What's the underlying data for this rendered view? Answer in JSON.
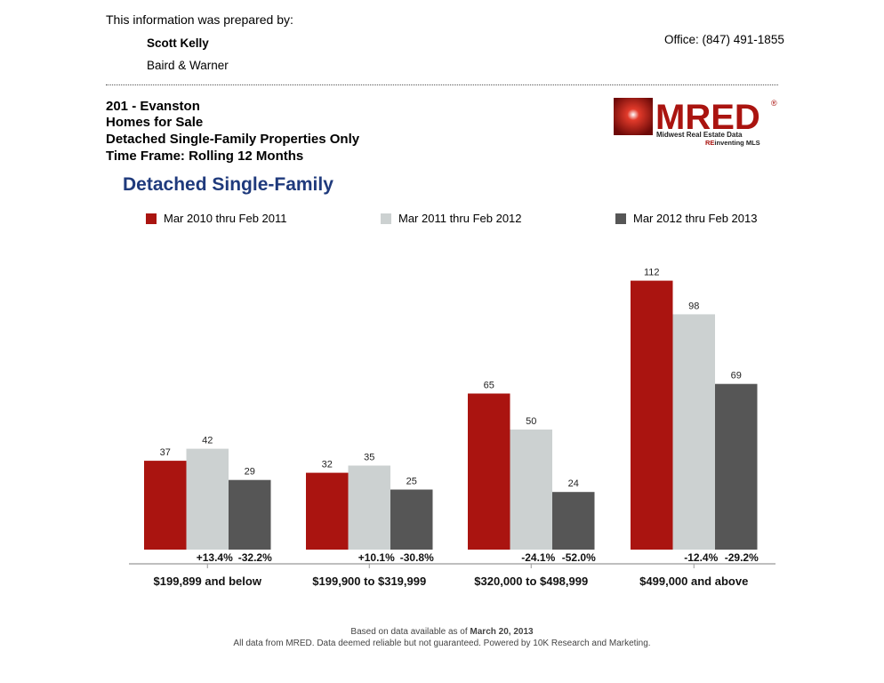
{
  "header": {
    "prepared_by": "This information was prepared by:",
    "agent_name": "Scott Kelly",
    "agent_company": "Baird & Warner",
    "office_phone": "Office: (847) 491-1855"
  },
  "report": {
    "area": "201 - Evanston",
    "type": "Homes for Sale",
    "properties": "Detached Single-Family Properties Only",
    "time_frame": "Time Frame: Rolling 12 Months"
  },
  "logo": {
    "text": "MRED",
    "tagline": "Midwest Real Estate Data",
    "sub_tagline_prefix": "RE",
    "sub_tagline_rest": "inventing MLS",
    "registered": "®"
  },
  "colors": {
    "series1": "#aa1410",
    "series2": "#ccd1d1",
    "series3": "#565656",
    "title_blue": "#1f3a7c",
    "axis": "#999999"
  },
  "chart_data": {
    "type": "bar",
    "title": "Detached Single-Family",
    "xlabel": "",
    "ylabel": "",
    "ylim": [
      0,
      120
    ],
    "grid": false,
    "legend": "top",
    "categories": [
      "$199,899 and below",
      "$199,900 to $319,999",
      "$320,000 to $498,999",
      "$499,000 and above"
    ],
    "series": [
      {
        "name": "Mar 2010 thru Feb 2011",
        "values": [
          37,
          32,
          65,
          112
        ]
      },
      {
        "name": "Mar 2011 thru Feb 2012",
        "values": [
          42,
          35,
          50,
          98
        ]
      },
      {
        "name": "Mar 2012 thru Feb 2013",
        "values": [
          29,
          25,
          24,
          69
        ]
      }
    ],
    "percent_changes": [
      [
        "+13.4%",
        "-32.2%"
      ],
      [
        "+10.1%",
        "-30.8%"
      ],
      [
        "-24.1%",
        "-52.0%"
      ],
      [
        "-12.4%",
        "-29.2%"
      ]
    ]
  },
  "footer": {
    "line1_prefix": "Based on data available as of ",
    "line1_date": "March 20, 2013",
    "line2": "All data from MRED. Data deemed reliable but not guaranteed. Powered by 10K Research and Marketing."
  }
}
